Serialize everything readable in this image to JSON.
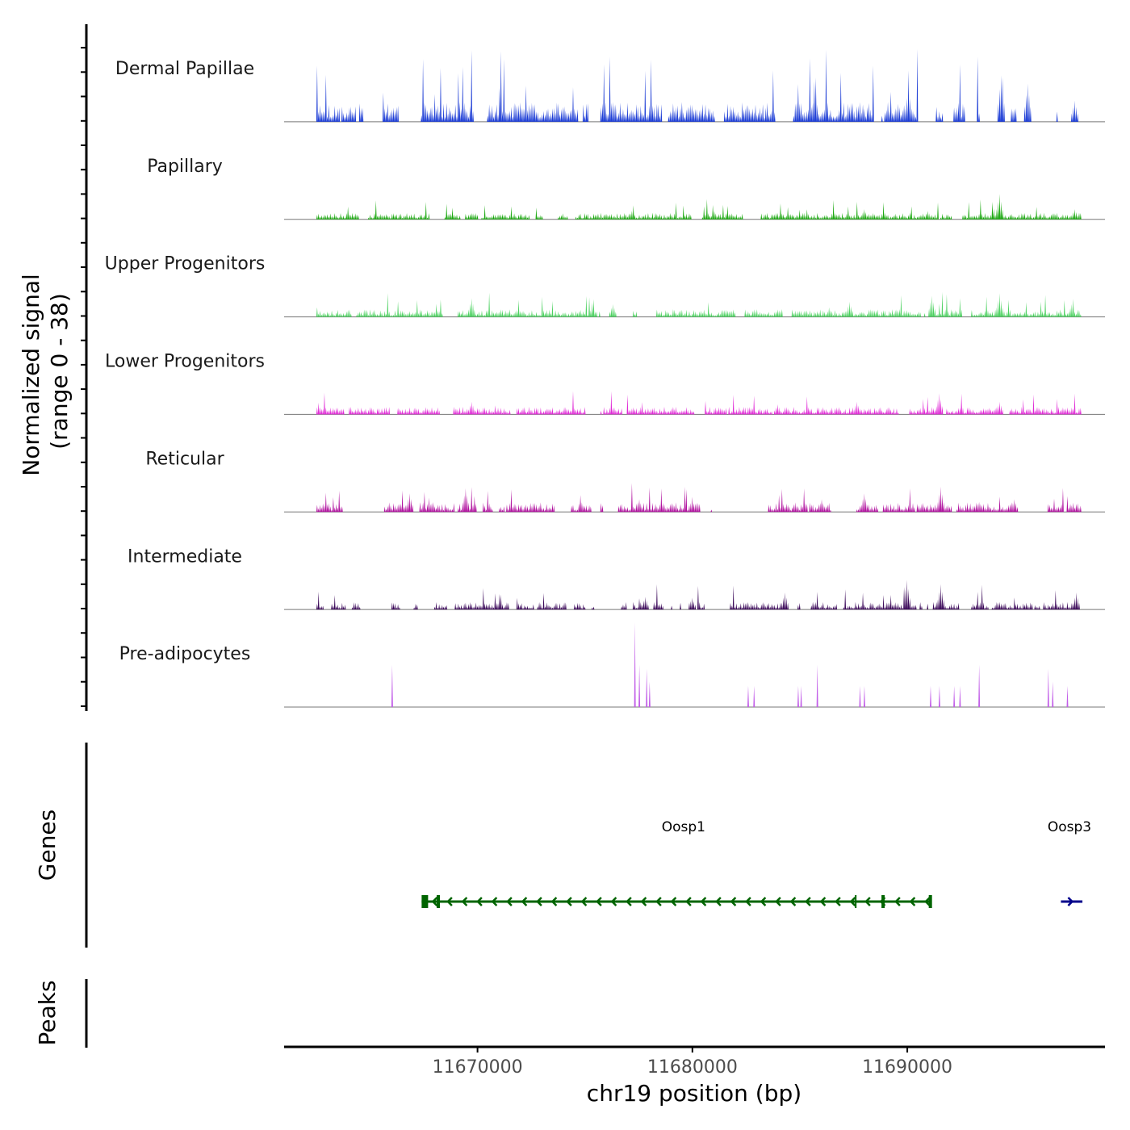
{
  "chart_data": {
    "type": "coverage-track",
    "chromosome": "chr19",
    "xlabel": "chr19 position (bp)",
    "xlim": [
      11661000,
      11699200
    ],
    "xticks": [
      11670000,
      11680000,
      11690000
    ],
    "tick_labels": [
      "11670000",
      "11680000",
      "11690000"
    ],
    "ylabel_line1": "Normalized signal",
    "ylabel_line2": "(range 0 - 38)",
    "yrange": [
      0,
      38
    ],
    "tracks": [
      {
        "name": "Dermal Papillae",
        "color": "#1f3fd6",
        "seed": 11,
        "density": 0.62,
        "base": 0.18,
        "spike_prob": 0.12,
        "spike_height": 0.45,
        "peaks": [
          [
            11662600,
            0.12
          ],
          [
            11667600,
            0.2
          ],
          [
            11680000,
            0.2
          ],
          [
            11690100,
            0.4
          ],
          [
            11694400,
            0.55
          ],
          [
            11695600,
            0.45
          ],
          [
            11697800,
            0.25
          ]
        ]
      },
      {
        "name": "Papillary",
        "color": "#1aa80f",
        "seed": 23,
        "density": 0.9,
        "base": 0.06,
        "spike_prob": 0.05,
        "spike_height": 0.12,
        "peaks": [
          [
            11677200,
            0.1
          ],
          [
            11681000,
            0.1
          ],
          [
            11688000,
            0.12
          ],
          [
            11691000,
            0.1
          ],
          [
            11694300,
            0.3
          ],
          [
            11697800,
            0.12
          ]
        ]
      },
      {
        "name": "Upper Progenitors",
        "color": "#4cd160",
        "seed": 37,
        "density": 0.88,
        "base": 0.07,
        "spike_prob": 0.06,
        "spike_height": 0.15,
        "peaks": [
          [
            11669700,
            0.22
          ],
          [
            11676300,
            0.15
          ],
          [
            11687300,
            0.18
          ],
          [
            11691200,
            0.25
          ],
          [
            11694300,
            0.28
          ],
          [
            11697700,
            0.15
          ]
        ]
      },
      {
        "name": "Lower Progenitors",
        "color": "#e02ad6",
        "seed": 41,
        "density": 0.82,
        "base": 0.07,
        "spike_prob": 0.06,
        "spike_height": 0.14,
        "peaks": [
          [
            11669700,
            0.15
          ],
          [
            11684000,
            0.12
          ],
          [
            11687700,
            0.15
          ],
          [
            11691500,
            0.25
          ],
          [
            11694300,
            0.15
          ]
        ]
      },
      {
        "name": "Reticular",
        "color": "#b0109e",
        "seed": 53,
        "density": 0.62,
        "base": 0.09,
        "spike_prob": 0.08,
        "spike_height": 0.16,
        "peaks": [
          [
            11666800,
            0.22
          ],
          [
            11669400,
            0.28
          ],
          [
            11677500,
            0.15
          ],
          [
            11680000,
            0.15
          ],
          [
            11686000,
            0.15
          ],
          [
            11688000,
            0.22
          ],
          [
            11691600,
            0.3
          ],
          [
            11695000,
            0.15
          ]
        ]
      },
      {
        "name": "Intermediate",
        "color": "#3c0a5a",
        "seed": 67,
        "density": 0.72,
        "base": 0.07,
        "spike_prob": 0.07,
        "spike_height": 0.16,
        "peaks": [
          [
            11677800,
            0.15
          ],
          [
            11680000,
            0.14
          ],
          [
            11684300,
            0.2
          ],
          [
            11690000,
            0.35
          ],
          [
            11691600,
            0.3
          ],
          [
            11697900,
            0.2
          ]
        ]
      },
      {
        "name": "Pre-adipocytes",
        "color": "#c25ee8",
        "seed": 79,
        "density": 0,
        "base": 0,
        "spike_prob": 0,
        "spike_height": 0,
        "peaks": [
          [
            11666000,
            0.5
          ],
          [
            11677350,
            1.0
          ],
          [
            11677550,
            0.5
          ],
          [
            11677850,
            0.45
          ],
          [
            11678000,
            0.3
          ],
          [
            11682600,
            0.25
          ],
          [
            11682900,
            0.25
          ],
          [
            11684900,
            0.25
          ],
          [
            11685100,
            0.25
          ],
          [
            11685800,
            0.5
          ],
          [
            11687800,
            0.25
          ],
          [
            11688000,
            0.25
          ],
          [
            11691100,
            0.25
          ],
          [
            11691500,
            0.25
          ],
          [
            11692200,
            0.25
          ],
          [
            11692500,
            0.25
          ],
          [
            11693400,
            0.5
          ],
          [
            11696600,
            0.45
          ],
          [
            11696800,
            0.3
          ],
          [
            11697500,
            0.25
          ]
        ],
        "sparse": true
      }
    ],
    "genes_title": "Genes",
    "genes": [
      {
        "name": "Oosp1",
        "strand": "-",
        "start": 11667400,
        "end": 11691100,
        "color": "#006400",
        "exons": [
          [
            11667400,
            11667700
          ],
          [
            11668100,
            11668200
          ],
          [
            11688800,
            11688950
          ],
          [
            11691000,
            11691100
          ]
        ],
        "ticks": [
          11687600
        ]
      },
      {
        "name": "Oosp3",
        "strand": "+",
        "start": 11697150,
        "end": 11698150,
        "color": "#00008b",
        "exons": [],
        "ticks": []
      }
    ],
    "peaks_title": "Peaks",
    "peaks": []
  }
}
